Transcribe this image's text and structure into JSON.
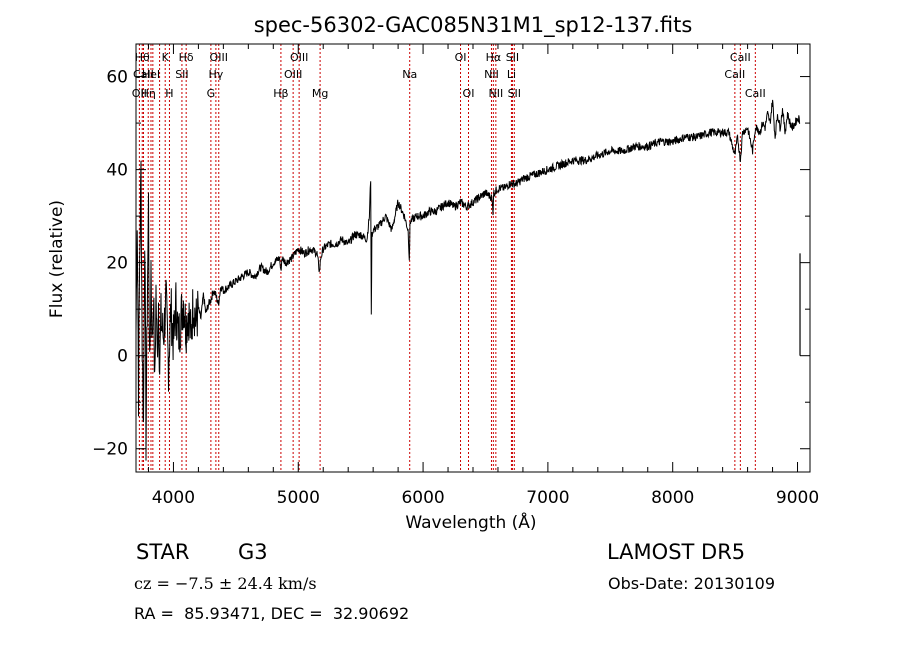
{
  "chart_data": {
    "type": "line",
    "title": "spec-56302-GAC085N31M1_sp12-137.fits",
    "xlabel": "Wavelength (Å)",
    "ylabel": "Flux (relative)",
    "xlim": [
      3700,
      9100
    ],
    "ylim": [
      -25,
      67
    ],
    "x_ticks": [
      4000,
      5000,
      6000,
      7000,
      8000,
      9000
    ],
    "y_ticks": [
      -20,
      0,
      20,
      40,
      60
    ],
    "grid": false,
    "line_color": "#000000",
    "marker_line_color": "#cc0000",
    "series": [
      {
        "x": [
          3700,
          3710,
          3720,
          3730,
          3740,
          3750,
          3760,
          3770,
          3780,
          3790,
          3800,
          3810,
          3820,
          3830,
          3840,
          3850,
          3860,
          3870,
          3880,
          3890,
          3900,
          3920,
          3940,
          3960,
          3980,
          4000,
          4020,
          4040,
          4060,
          4080,
          4100,
          4120,
          4140,
          4160,
          4180,
          4200,
          4220,
          4240,
          4260,
          4280,
          4300,
          4320,
          4340,
          4360,
          4380,
          4400,
          4450,
          4500,
          4550,
          4600,
          4650,
          4700,
          4750,
          4800,
          4850,
          4860,
          4870,
          4900,
          4950,
          5000,
          5050,
          5100,
          5150,
          5170,
          5180,
          5190,
          5200,
          5250,
          5300,
          5350,
          5400,
          5450,
          5500,
          5550,
          5570,
          5580,
          5585,
          5590,
          5600,
          5650,
          5700,
          5750,
          5800,
          5850,
          5880,
          5890,
          5895,
          5900,
          5950,
          6000,
          6050,
          6100,
          6150,
          6200,
          6250,
          6300,
          6350,
          6400,
          6450,
          6500,
          6550,
          6560,
          6565,
          6570,
          6600,
          6650,
          6700,
          6750,
          6800,
          6900,
          7000,
          7100,
          7200,
          7300,
          7400,
          7500,
          7600,
          7700,
          7800,
          7900,
          8000,
          8100,
          8200,
          8300,
          8400,
          8450,
          8498,
          8520,
          8542,
          8560,
          8600,
          8640,
          8662,
          8680,
          8700,
          8720,
          8740,
          8760,
          8780,
          8800,
          8820,
          8840,
          8860,
          8880,
          8900,
          8920,
          8940,
          8960,
          8980,
          9000,
          9010,
          9020
        ],
        "y": [
          5,
          30,
          -8,
          22,
          40,
          2,
          -15,
          28,
          -18,
          10,
          33,
          -5,
          20,
          2,
          15,
          -8,
          14,
          0,
          12,
          -3,
          8,
          4,
          12,
          -2,
          10,
          3,
          11,
          4,
          8,
          12,
          6,
          10,
          4,
          12,
          7,
          10,
          8,
          13,
          9,
          11,
          12,
          14,
          13,
          11,
          15,
          14,
          15,
          16,
          17,
          18,
          17,
          19,
          18,
          20,
          21,
          18,
          21,
          20,
          21,
          23,
          22,
          23,
          22,
          18,
          21,
          22,
          23,
          24,
          24,
          25,
          24,
          26,
          26,
          25,
          30,
          38,
          8,
          26,
          27,
          28,
          30,
          27,
          33,
          30,
          27,
          21,
          28,
          29,
          30,
          30,
          31,
          31,
          32,
          33,
          32,
          33,
          32,
          33,
          34,
          35,
          34,
          31,
          35,
          35,
          36,
          36,
          37,
          37,
          38,
          39,
          40,
          41,
          42,
          42,
          43,
          44,
          44,
          45,
          45,
          46,
          46,
          47,
          47,
          48,
          48,
          48,
          43,
          47,
          42,
          48,
          49,
          44,
          49,
          49,
          48,
          50,
          49,
          52,
          50,
          55,
          47,
          52,
          49,
          53,
          48,
          52,
          50,
          49,
          50,
          51,
          51,
          50
        ],
        "noisy_below": 4200
      }
    ],
    "spikes": [
      {
        "x": 9020,
        "y_min": 0,
        "y_max": 22
      }
    ],
    "line_markers": [
      {
        "x": 3727,
        "label": "OII",
        "row": 3
      },
      {
        "x": 3750,
        "label": "Hθ",
        "row": 1
      },
      {
        "x": 3760,
        "label": "CaII",
        "row": 2
      },
      {
        "x": 3798,
        "label": "Hη",
        "row": 3
      },
      {
        "x": 3820,
        "label": "HeI",
        "row": 2
      },
      {
        "x": 3835,
        "label": "",
        "row": 0
      },
      {
        "x": 3889,
        "label": "",
        "row": 0
      },
      {
        "x": 3934,
        "label": "K",
        "row": 1
      },
      {
        "x": 3968,
        "label": "H",
        "row": 3
      },
      {
        "x": 4068,
        "label": "SII",
        "row": 2
      },
      {
        "x": 4102,
        "label": "Hδ",
        "row": 1
      },
      {
        "x": 4300,
        "label": "G",
        "row": 3
      },
      {
        "x": 4340,
        "label": "Hγ",
        "row": 2
      },
      {
        "x": 4363,
        "label": "OIII",
        "row": 1
      },
      {
        "x": 4861,
        "label": "Hβ",
        "row": 3
      },
      {
        "x": 4959,
        "label": "OIII",
        "row": 2
      },
      {
        "x": 5007,
        "label": "OIII",
        "row": 1
      },
      {
        "x": 5175,
        "label": "Mg",
        "row": 3
      },
      {
        "x": 5893,
        "label": "Na",
        "row": 2
      },
      {
        "x": 6300,
        "label": "OI",
        "row": 1
      },
      {
        "x": 6364,
        "label": "OI",
        "row": 3
      },
      {
        "x": 6548,
        "label": "NII",
        "row": 2
      },
      {
        "x": 6563,
        "label": "Hα",
        "row": 1
      },
      {
        "x": 6583,
        "label": "NII",
        "row": 3
      },
      {
        "x": 6708,
        "label": "Li",
        "row": 2
      },
      {
        "x": 6716,
        "label": "SII",
        "row": 1
      },
      {
        "x": 6731,
        "label": "SII",
        "row": 3
      },
      {
        "x": 8498,
        "label": "CaII",
        "row": 2
      },
      {
        "x": 8542,
        "label": "CaII",
        "row": 1
      },
      {
        "x": 8662,
        "label": "CaII",
        "row": 3
      }
    ]
  },
  "info": {
    "object_class": "STAR",
    "subclass": "G3",
    "survey": "LAMOST DR5",
    "redshift": "cz = −7.5 ± 24.4 km/s",
    "obs_date": "Obs-Date: 20130109",
    "coords": "RA =  85.93471, DEC =  32.90692"
  }
}
